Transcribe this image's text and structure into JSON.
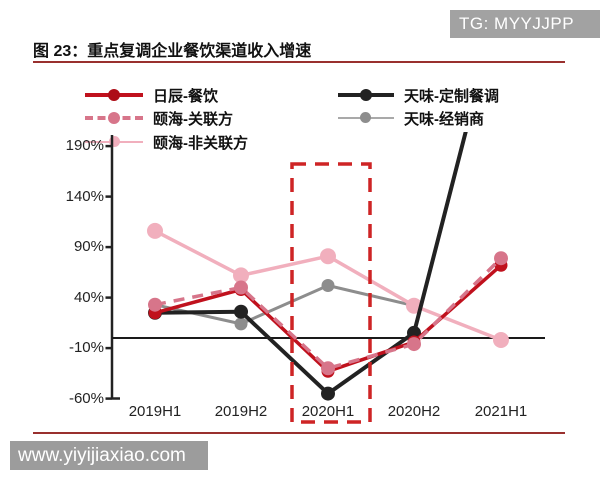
{
  "badge": {
    "text": "TG: MYYJJPP"
  },
  "title": {
    "text": "图 23：重点复调企业餐饮渠道收入增速"
  },
  "watermark": {
    "text": "www.yiyijiaxiao.com"
  },
  "chart_data": {
    "type": "line",
    "title": "重点复调企业餐饮渠道收入增速",
    "categories": [
      "2019H1",
      "2019H2",
      "2020H1",
      "2020H2",
      "2021H1"
    ],
    "series": [
      {
        "name": "日辰-餐饮",
        "color": "#C0111D",
        "style": "solid",
        "values": [
          25,
          48,
          -33,
          -4,
          72
        ]
      },
      {
        "name": "颐海-关联方",
        "color": "#D7758A",
        "style": "dashed",
        "values": [
          33,
          50,
          -30,
          -6,
          79
        ]
      },
      {
        "name": "颐海-非关联方",
        "color": "#F1AFBD",
        "style": "solid",
        "values": [
          106,
          62,
          81,
          32,
          -2
        ]
      },
      {
        "name": "天味-定制餐调",
        "color": "#222222",
        "style": "solid",
        "values": [
          25,
          26,
          -55,
          5,
          340
        ],
        "clipped_at_top": true
      },
      {
        "name": "天味-经销商",
        "color": "#8D8D8D",
        "style": "solid",
        "values": [
          33,
          14,
          52,
          32,
          null
        ]
      }
    ],
    "ylabel_ticks": [
      "190%",
      "140%",
      "90%",
      "40%",
      "-10%",
      "-60%"
    ],
    "ytick_values": [
      190,
      140,
      90,
      40,
      -10,
      -60
    ],
    "ylim": [
      -60,
      190
    ],
    "unit": "percent",
    "grid": false,
    "zero_baseline": true,
    "legend_position": "top",
    "highlight": {
      "category": "2020H1",
      "style": "red-dashed-rectangle",
      "color": "#CE2425"
    }
  }
}
